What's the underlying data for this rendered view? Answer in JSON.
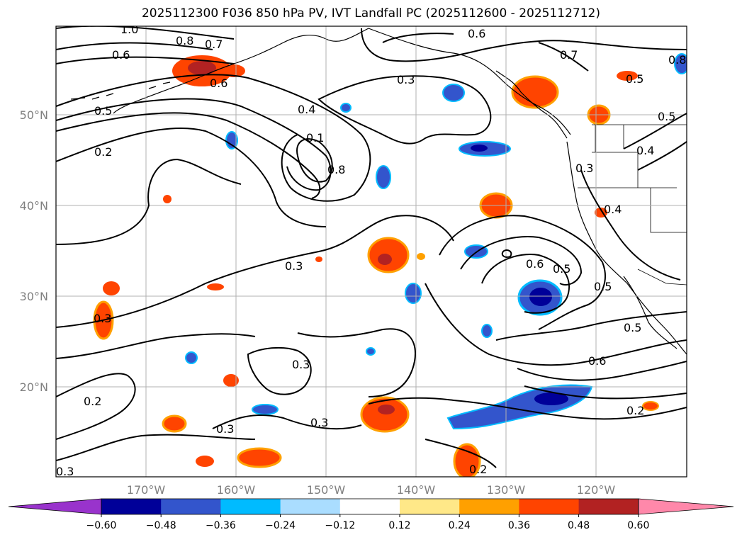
{
  "title": "2025112300 F036 850 hPa PV, IVT Landfall PC (2025112600 - 2025112712)",
  "lat_labels": [
    "50°N",
    "40°N",
    "30°N",
    "20°N"
  ],
  "lon_labels": [
    "170°W",
    "160°W",
    "150°W",
    "140°W",
    "130°W",
    "120°W"
  ],
  "colorbar": {
    "ticks": [
      "−0.60",
      "−0.48",
      "−0.36",
      "−0.24",
      "−0.12",
      "0.12",
      "0.24",
      "0.36",
      "0.48",
      "0.60"
    ],
    "colors": [
      "#9933cc",
      "#000099",
      "#3355cc",
      "#00bbff",
      "#aaddff",
      "#ffffff",
      "#ffe888",
      "#ffa000",
      "#ff4400",
      "#b22222",
      "#ff88aa"
    ]
  },
  "contour_labels": [
    "1.0",
    "0.8",
    "0.7",
    "0.6",
    "0.6",
    "0.5",
    "0.2",
    "0.3",
    "0.4",
    "0.1",
    "0.8",
    "0.6",
    "0.7",
    "0.8",
    "0.5",
    "0.5",
    "0.4",
    "0.3",
    "0.4",
    "0.3",
    "0.6",
    "0.5",
    "0.5",
    "0.3",
    "0.5",
    "0.6",
    "0.3",
    "0.2",
    "0.3",
    "0.3",
    "0.2",
    "0.2",
    "0.3"
  ]
}
